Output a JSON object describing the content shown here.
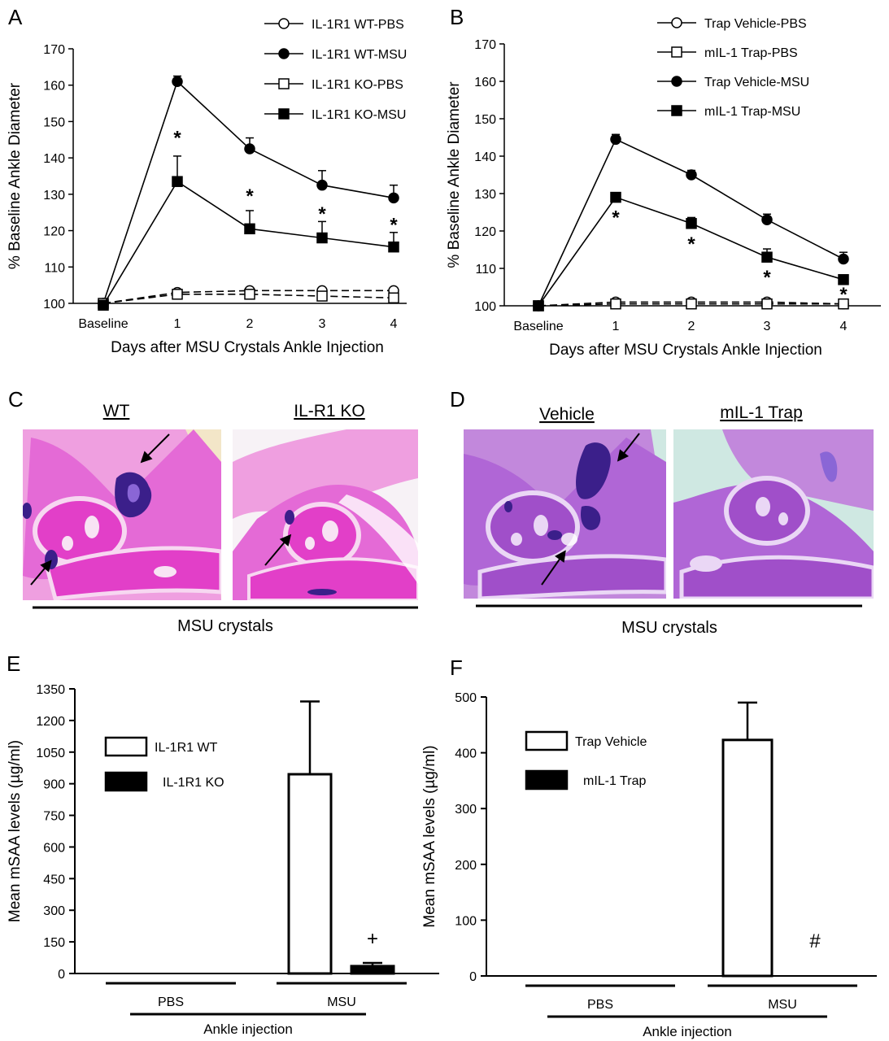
{
  "panels": {
    "A": {
      "letter": "A"
    },
    "B": {
      "letter": "B"
    },
    "C": {
      "letter": "C"
    },
    "D": {
      "letter": "D"
    },
    "E": {
      "letter": "E"
    },
    "F": {
      "letter": "F"
    }
  },
  "histology": {
    "C": {
      "left_title": "WT",
      "right_title": "IL-R1 KO",
      "caption": "MSU crystals"
    },
    "D": {
      "left_title": "Vehicle",
      "right_title": "mIL-1 Trap",
      "caption": "MSU crystals"
    }
  },
  "colors": {
    "tissue_pink": "#e46ad6",
    "bone_pink": "#e23fc8",
    "crystal_purple": "#3b1f8a",
    "stain_violet": "#b066d6",
    "background_cream": "#f3e6c8",
    "background_teal": "#cfe8e2"
  },
  "chart_data": [
    {
      "panel": "A",
      "type": "line",
      "x": [
        "Baseline",
        "1",
        "2",
        "3",
        "4"
      ],
      "xlabel": "Days after MSU Crystals Ankle Injection",
      "ylabel": "% Baseline Ankle Diameter",
      "ylim": [
        100,
        170
      ],
      "yticks": [
        100,
        110,
        120,
        130,
        140,
        150,
        160,
        170
      ],
      "legend_position": "top-right",
      "series": [
        {
          "name": "IL-1R1 WT-PBS",
          "values": [
            100,
            103,
            103.5,
            103.5,
            103.5
          ],
          "marker": "circle-open",
          "dashed": true
        },
        {
          "name": "IL-1R1 WT-MSU",
          "values": [
            100,
            161,
            142.5,
            132.5,
            129
          ],
          "errors": [
            0,
            1.5,
            3,
            4,
            3.5
          ],
          "marker": "circle-filled",
          "dashed": false
        },
        {
          "name": "IL-1R1 KO-PBS",
          "values": [
            100,
            102.5,
            102.5,
            102,
            101.5
          ],
          "marker": "square-open",
          "dashed": true
        },
        {
          "name": "IL-1R1 KO-MSU",
          "values": [
            99.5,
            133.5,
            120.5,
            118,
            115.5
          ],
          "errors": [
            0,
            7,
            5,
            4.5,
            4
          ],
          "marker": "square-filled",
          "dashed": false
        }
      ],
      "annotations": [
        {
          "x": "1",
          "y": 146,
          "text": "*"
        },
        {
          "x": "2",
          "y": 130,
          "text": "*"
        },
        {
          "x": "3",
          "y": 125,
          "text": "*"
        },
        {
          "x": "4",
          "y": 122,
          "text": "*"
        }
      ]
    },
    {
      "panel": "B",
      "type": "line",
      "x": [
        "Baseline",
        "1",
        "2",
        "3",
        "4"
      ],
      "xlabel": "Days after MSU Crystals Ankle Injection",
      "ylabel": "% Baseline Ankle Diameter",
      "ylim": [
        100,
        170
      ],
      "yticks": [
        100,
        110,
        120,
        130,
        140,
        150,
        160,
        170
      ],
      "legend_position": "top-right",
      "series": [
        {
          "name": "Trap Vehicle-PBS",
          "values": [
            100,
            101,
            101,
            101,
            100.5
          ],
          "marker": "circle-open",
          "dashed": true
        },
        {
          "name": "mIL-1 Trap-PBS",
          "values": [
            100,
            100.5,
            100.5,
            100.5,
            100.5
          ],
          "marker": "square-open",
          "dashed": true
        },
        {
          "name": "Trap Vehicle-MSU",
          "values": [
            100,
            144.5,
            135,
            123,
            112.5
          ],
          "errors": [
            0,
            1.3,
            1.2,
            1.5,
            1.8
          ],
          "marker": "circle-filled",
          "dashed": false
        },
        {
          "name": "mIL-1 Trap-MSU",
          "values": [
            100,
            129,
            122,
            113,
            107
          ],
          "errors": [
            0,
            0.8,
            1.6,
            2.2,
            1
          ],
          "marker": "square-filled",
          "dashed": false
        }
      ],
      "annotations": [
        {
          "x": "1",
          "y": 124,
          "text": "*"
        },
        {
          "x": "2",
          "y": 117,
          "text": "*"
        },
        {
          "x": "3",
          "y": 108,
          "text": "*"
        },
        {
          "x": "4",
          "y": 103.5,
          "text": "*"
        }
      ]
    },
    {
      "panel": "E",
      "type": "bar",
      "categories": [
        "PBS",
        "MSU"
      ],
      "group_label": "Ankle injection",
      "ylabel": "Mean mSAA levels (µg/ml)",
      "ylim": [
        0,
        1350
      ],
      "yticks": [
        0,
        150,
        300,
        450,
        600,
        750,
        900,
        1050,
        1200,
        1350
      ],
      "legend_position": "top-left",
      "series": [
        {
          "name": "IL-1R1 WT",
          "values": [
            0,
            945
          ],
          "errors": [
            0,
            345
          ],
          "fill": "open"
        },
        {
          "name": "IL-1R1 KO",
          "values": [
            0,
            35
          ],
          "errors": [
            0,
            15
          ],
          "fill": "solid"
        }
      ],
      "annotations": [
        {
          "category": "MSU",
          "series": "IL-1R1 KO",
          "text": "+"
        }
      ]
    },
    {
      "panel": "F",
      "type": "bar",
      "categories": [
        "PBS",
        "MSU"
      ],
      "group_label": "Ankle injection",
      "ylabel": "Mean mSAA levels (µg/ml)",
      "ylim": [
        0,
        500
      ],
      "yticks": [
        0,
        100,
        200,
        300,
        400,
        500
      ],
      "legend_position": "top-left",
      "series": [
        {
          "name": "Trap Vehicle",
          "values": [
            0,
            423
          ],
          "errors": [
            0,
            67
          ],
          "fill": "open"
        },
        {
          "name": "mIL-1 Trap",
          "values": [
            0,
            0
          ],
          "errors": [
            0,
            0
          ],
          "fill": "solid"
        }
      ],
      "annotations": [
        {
          "category": "MSU",
          "series": "mIL-1 Trap",
          "text": "#"
        }
      ]
    }
  ]
}
